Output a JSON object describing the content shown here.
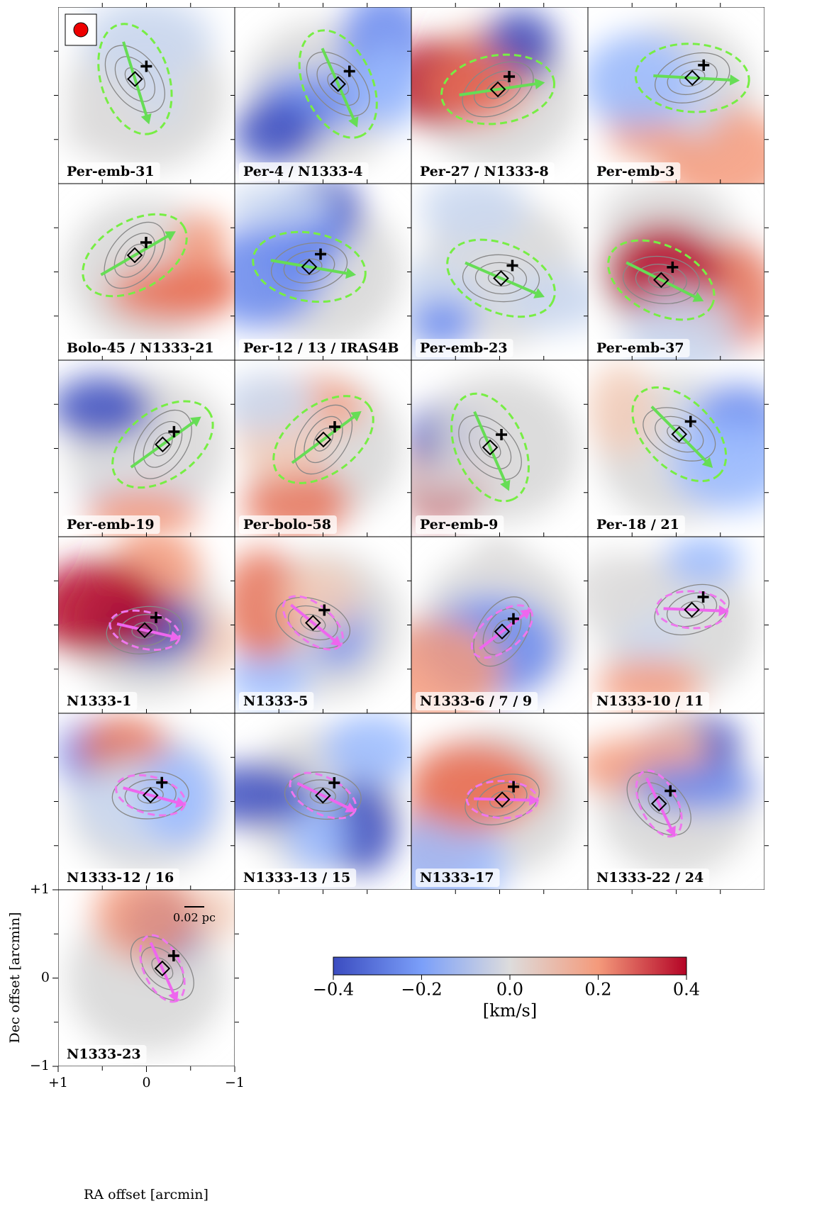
{
  "chart_data": {
    "type": "velocity-map-grid",
    "panels": [
      "Per-emb-31",
      "Per-4 / N1333-4",
      "Per-27 / N1333-8",
      "Per-emb-3",
      "Bolo-45 / N1333-21",
      "Per-12 / 13 / IRAS4B",
      "Per-emb-23",
      "Per-emb-37",
      "Per-emb-19",
      "Per-bolo-58",
      "Per-emb-9",
      "Per-18 / 21",
      "N1333-1",
      "N1333-5",
      "N1333-6 / 7 / 9",
      "N1333-10 / 11",
      "N1333-12 / 16",
      "N1333-13 / 15",
      "N1333-17",
      "N1333-22 / 24",
      "N1333-23"
    ],
    "xlabel": "RA offset [arcmin]",
    "ylabel": "Dec offset [arcmin]",
    "xlim": [
      1,
      -1
    ],
    "ylim": [
      -1,
      1
    ],
    "xticks": [
      {
        "value": 1,
        "label": "+1"
      },
      0,
      {
        "value": -1,
        "label": "−1"
      }
    ],
    "yticks": [
      {
        "value": -1,
        "label": "−1"
      },
      0,
      {
        "value": 1,
        "label": "+1"
      }
    ],
    "scale_bar": "0.02 pc",
    "colorbar": {
      "label": "[km/s]",
      "lim": [
        -0.4,
        0.4
      ],
      "ticks": [
        {
          "value": -0.4,
          "label": "−0.4"
        },
        {
          "value": -0.2,
          "label": "−0.2"
        },
        {
          "value": 0,
          "label": "0.0"
        },
        0.2,
        0.4
      ]
    }
  }
}
